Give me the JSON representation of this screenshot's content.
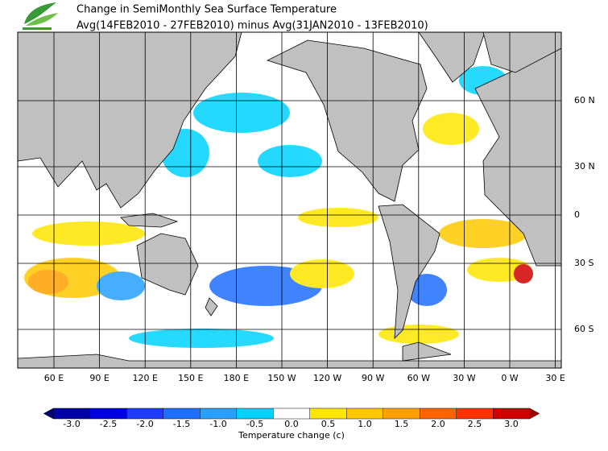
{
  "header": {
    "title": "Change in SemiMonthly Sea Surface Temperature",
    "subtitle": "Avg(14FEB2010 - 27FEB2010) minus Avg(31JAN2010 - 13FEB2010)"
  },
  "map": {
    "lon_labels": [
      "60 E",
      "90 E",
      "120 E",
      "150 E",
      "180 E",
      "150 W",
      "120 W",
      "90 W",
      "60 W",
      "30 W",
      "0 W",
      "30 E"
    ],
    "lat_labels": [
      "60 N",
      "30 N",
      "0",
      "30 S",
      "60 S"
    ]
  },
  "colorbar": {
    "title": "Temperature change  (c)",
    "ticks": [
      {
        "value": -3,
        "label": "-3.0"
      },
      {
        "value": -2.5,
        "label": "-2.5"
      },
      {
        "value": -2,
        "label": "-2.0"
      },
      {
        "value": -1.5,
        "label": "-1.5"
      },
      {
        "value": -1,
        "label": "-1.0"
      },
      -0.5,
      {
        "value": 0,
        "label": "0.0"
      },
      0.5,
      {
        "value": 1,
        "label": "1.0"
      },
      1.5,
      {
        "value": 2,
        "label": "2.0"
      },
      2.5,
      {
        "value": 3,
        "label": "3.0"
      }
    ],
    "under_color": "#000070",
    "over_color": "#a00000",
    "colors": [
      "#0000a8",
      "#0000e0",
      "#1e3cff",
      "#1e6eff",
      "#28a0ff",
      "#00d2ff",
      "#ffffff",
      "#ffe600",
      "#ffc800",
      "#ffa000",
      "#ff6400",
      "#ff3200",
      "#d20000"
    ]
  }
}
